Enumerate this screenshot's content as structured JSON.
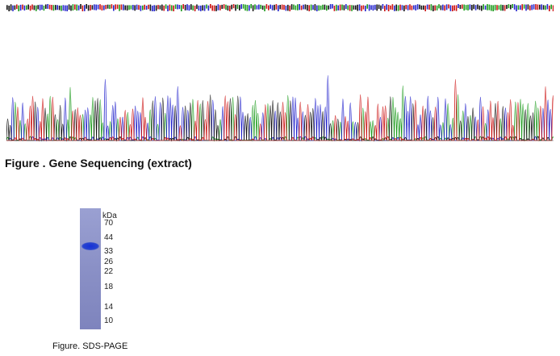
{
  "sequencing": {
    "caption": "Figure . Gene Sequencing (extract)",
    "trace_colors": {
      "A": "#1a9a1a",
      "C": "#2222cc",
      "G": "#111111",
      "T": "#cc1111"
    }
  },
  "sds_page": {
    "caption": "Figure. SDS-PAGE",
    "unit": "kDa",
    "markers": [
      "70",
      "44",
      "33",
      "26",
      "22",
      "18",
      "14",
      "10"
    ],
    "band_kda": 38,
    "lane_color": "#8a8fc4",
    "band_color": "#1f3bd0"
  }
}
